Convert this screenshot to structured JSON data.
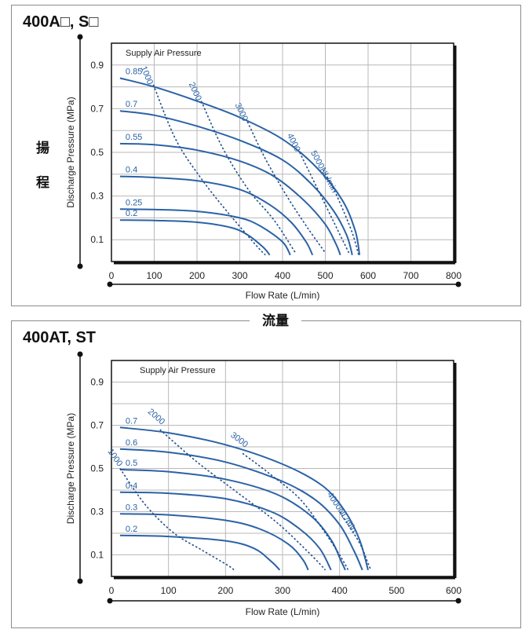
{
  "side_label": {
    "char1": "揚",
    "char2": "程"
  },
  "bottom_label": "流量",
  "colors": {
    "curve": "#2b62a6",
    "grid": "#b8b8b8",
    "frame": "#111111"
  },
  "chart_data": [
    {
      "type": "line",
      "title": "400A□, S□",
      "xlabel": "Flow Rate (L/min)",
      "ylabel": "Discharge Pressure (MPa)",
      "annotation": "Supply Air Pressure",
      "xlim": [
        0,
        800
      ],
      "ylim": [
        0,
        1.0
      ],
      "x_ticks": [
        "0",
        "100",
        "200",
        "300",
        "400",
        "500",
        "600",
        "700",
        "800"
      ],
      "y_ticks": [
        "0.1",
        "0.3",
        "0.5",
        "0.7",
        "0.9"
      ],
      "grid": true,
      "series": [
        {
          "name": "0.85",
          "points": [
            [
              20,
              0.84
            ],
            [
              100,
              0.8
            ],
            [
              200,
              0.735
            ],
            [
              300,
              0.66
            ],
            [
              400,
              0.56
            ],
            [
              480,
              0.43
            ],
            [
              540,
              0.28
            ],
            [
              570,
              0.14
            ],
            [
              580,
              0.03
            ]
          ]
        },
        {
          "name": "0.7",
          "points": [
            [
              20,
              0.69
            ],
            [
              100,
              0.67
            ],
            [
              200,
              0.62
            ],
            [
              300,
              0.555
            ],
            [
              400,
              0.465
            ],
            [
              470,
              0.35
            ],
            [
              520,
              0.23
            ],
            [
              550,
              0.12
            ],
            [
              563,
              0.03
            ]
          ]
        },
        {
          "name": "0.55",
          "points": [
            [
              20,
              0.54
            ],
            [
              100,
              0.535
            ],
            [
              200,
              0.51
            ],
            [
              300,
              0.46
            ],
            [
              380,
              0.39
            ],
            [
              450,
              0.28
            ],
            [
              500,
              0.17
            ],
            [
              525,
              0.08
            ],
            [
              535,
              0.03
            ]
          ]
        },
        {
          "name": "0.4",
          "points": [
            [
              20,
              0.39
            ],
            [
              100,
              0.385
            ],
            [
              200,
              0.37
            ],
            [
              300,
              0.33
            ],
            [
              370,
              0.26
            ],
            [
              420,
              0.18
            ],
            [
              455,
              0.09
            ],
            [
              470,
              0.03
            ]
          ]
        },
        {
          "name": "0.25",
          "points": [
            [
              20,
              0.24
            ],
            [
              100,
              0.238
            ],
            [
              200,
              0.23
            ],
            [
              300,
              0.2
            ],
            [
              350,
              0.16
            ],
            [
              400,
              0.09
            ],
            [
              418,
              0.03
            ]
          ]
        },
        {
          "name": "0.2",
          "points": [
            [
              20,
              0.19
            ],
            [
              100,
              0.188
            ],
            [
              200,
              0.18
            ],
            [
              280,
              0.155
            ],
            [
              320,
              0.12
            ],
            [
              355,
              0.065
            ],
            [
              370,
              0.03
            ]
          ]
        }
      ],
      "flow_lines": [
        {
          "label": "1000",
          "points": [
            [
              98,
              0.81
            ],
            [
              150,
              0.56
            ],
            [
              210,
              0.38
            ],
            [
              270,
              0.23
            ],
            [
              340,
              0.07
            ],
            [
              360,
              0.03
            ]
          ]
        },
        {
          "label": "2000",
          "points": [
            [
              210,
              0.735
            ],
            [
              260,
              0.52
            ],
            [
              320,
              0.33
            ],
            [
              380,
              0.19
            ],
            [
              430,
              0.04
            ]
          ]
        },
        {
          "label": "3000",
          "points": [
            [
              318,
              0.64
            ],
            [
              360,
              0.47
            ],
            [
              410,
              0.3
            ],
            [
              460,
              0.15
            ],
            [
              500,
              0.04
            ]
          ]
        },
        {
          "label": "4000",
          "points": [
            [
              440,
              0.5
            ],
            [
              470,
              0.38
            ],
            [
              500,
              0.26
            ],
            [
              530,
              0.14
            ],
            [
              555,
              0.04
            ]
          ]
        },
        {
          "label": "5000NL/min",
          "points": [
            [
              495,
              0.42
            ],
            [
              520,
              0.33
            ],
            [
              545,
              0.22
            ],
            [
              565,
              0.12
            ],
            [
              578,
              0.03
            ]
          ]
        }
      ]
    },
    {
      "type": "line",
      "title": "400AT, ST",
      "xlabel": "Flow Rate (L/min)",
      "ylabel": "Discharge Pressure (MPa)",
      "annotation": "Supply Air Pressure",
      "xlim": [
        0,
        600
      ],
      "ylim": [
        0,
        1.0
      ],
      "x_ticks": [
        "0",
        "100",
        "200",
        "300",
        "400",
        "500",
        "600"
      ],
      "y_ticks": [
        "0.1",
        "0.3",
        "0.5",
        "0.7",
        "0.9"
      ],
      "grid": true,
      "series": [
        {
          "name": "0.7",
          "points": [
            [
              15,
              0.69
            ],
            [
              100,
              0.665
            ],
            [
              200,
              0.61
            ],
            [
              300,
              0.52
            ],
            [
              370,
              0.42
            ],
            [
              410,
              0.3
            ],
            [
              435,
              0.17
            ],
            [
              450,
              0.03
            ]
          ]
        },
        {
          "name": "0.6",
          "points": [
            [
              15,
              0.59
            ],
            [
              100,
              0.575
            ],
            [
              200,
              0.53
            ],
            [
              300,
              0.44
            ],
            [
              360,
              0.35
            ],
            [
              400,
              0.24
            ],
            [
              425,
              0.12
            ],
            [
              440,
              0.03
            ]
          ]
        },
        {
          "name": "0.5",
          "points": [
            [
              15,
              0.495
            ],
            [
              100,
              0.485
            ],
            [
              200,
              0.45
            ],
            [
              290,
              0.38
            ],
            [
              350,
              0.28
            ],
            [
              385,
              0.17
            ],
            [
              403,
              0.07
            ],
            [
              410,
              0.03
            ]
          ]
        },
        {
          "name": "0.4",
          "points": [
            [
              15,
              0.39
            ],
            [
              100,
              0.385
            ],
            [
              200,
              0.36
            ],
            [
              280,
              0.3
            ],
            [
              330,
              0.22
            ],
            [
              365,
              0.13
            ],
            [
              385,
              0.03
            ]
          ]
        },
        {
          "name": "0.3",
          "points": [
            [
              15,
              0.29
            ],
            [
              100,
              0.285
            ],
            [
              200,
              0.26
            ],
            [
              260,
              0.22
            ],
            [
              310,
              0.15
            ],
            [
              335,
              0.08
            ],
            [
              345,
              0.03
            ]
          ]
        },
        {
          "name": "0.2",
          "points": [
            [
              15,
              0.19
            ],
            [
              100,
              0.185
            ],
            [
              200,
              0.165
            ],
            [
              250,
              0.13
            ],
            [
              280,
              0.07
            ],
            [
              295,
              0.03
            ]
          ]
        }
      ],
      "flow_lines": [
        {
          "label": "1000",
          "points": [
            [
              15,
              0.5
            ],
            [
              60,
              0.33
            ],
            [
              110,
              0.2
            ],
            [
              160,
              0.12
            ],
            [
              205,
              0.05
            ],
            [
              215,
              0.03
            ]
          ]
        },
        {
          "label": "2000",
          "points": [
            [
              85,
              0.68
            ],
            [
              150,
              0.53
            ],
            [
              220,
              0.39
            ],
            [
              290,
              0.25
            ],
            [
              350,
              0.1
            ],
            [
              375,
              0.03
            ]
          ]
        },
        {
          "label": "3000",
          "points": [
            [
              230,
              0.57
            ],
            [
              280,
              0.47
            ],
            [
              330,
              0.36
            ],
            [
              370,
              0.22
            ],
            [
              400,
              0.1
            ],
            [
              415,
              0.03
            ]
          ]
        },
        {
          "label": "4000NL/min",
          "points": [
            [
              400,
              0.3
            ],
            [
              420,
              0.22
            ],
            [
              438,
              0.14
            ],
            [
              450,
              0.06
            ],
            [
              455,
              0.03
            ]
          ]
        }
      ]
    }
  ]
}
